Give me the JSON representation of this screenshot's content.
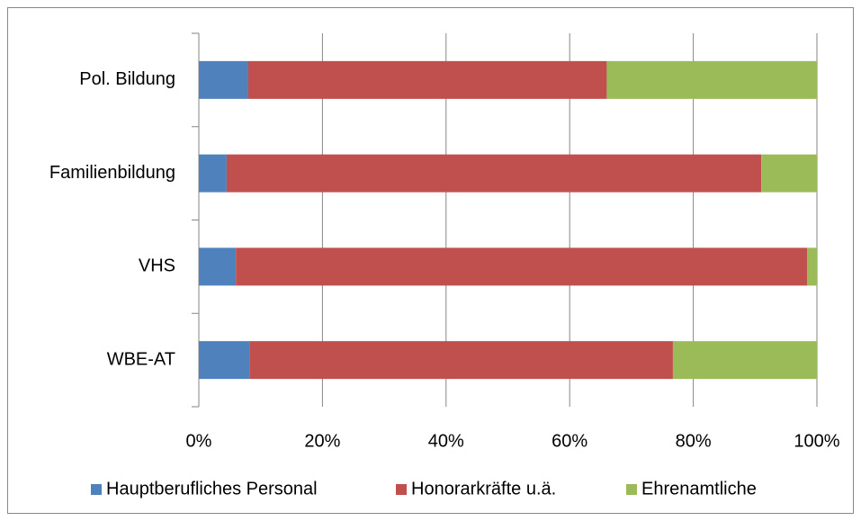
{
  "chart_data": {
    "type": "stacked-bar-horizontal",
    "categories": [
      "Pol. Bildung",
      "Familienbildung",
      "VHS",
      "WBE-AT"
    ],
    "series": [
      {
        "name": "Hauptberufliches Personal",
        "color": "#4f81bd",
        "values": [
          8,
          4.5,
          6,
          8.2
        ]
      },
      {
        "name": "Honorarkräfte u.ä.",
        "color": "#c0504d",
        "values": [
          58,
          86.5,
          92.4,
          68.5
        ]
      },
      {
        "name": "Ehrenamtliche",
        "color": "#9bbb59",
        "values": [
          34,
          9,
          1.6,
          23.3
        ]
      }
    ],
    "xlim": [
      0,
      100
    ],
    "xticks": [
      {
        "value": 0,
        "label": "0%"
      },
      {
        "value": 20,
        "label": "20%"
      },
      {
        "value": 40,
        "label": "40%"
      },
      {
        "value": 60,
        "label": "60%"
      },
      {
        "value": 80,
        "label": "80%"
      },
      {
        "value": 100,
        "label": "100%"
      }
    ],
    "grid": true,
    "legend": "bottom"
  }
}
